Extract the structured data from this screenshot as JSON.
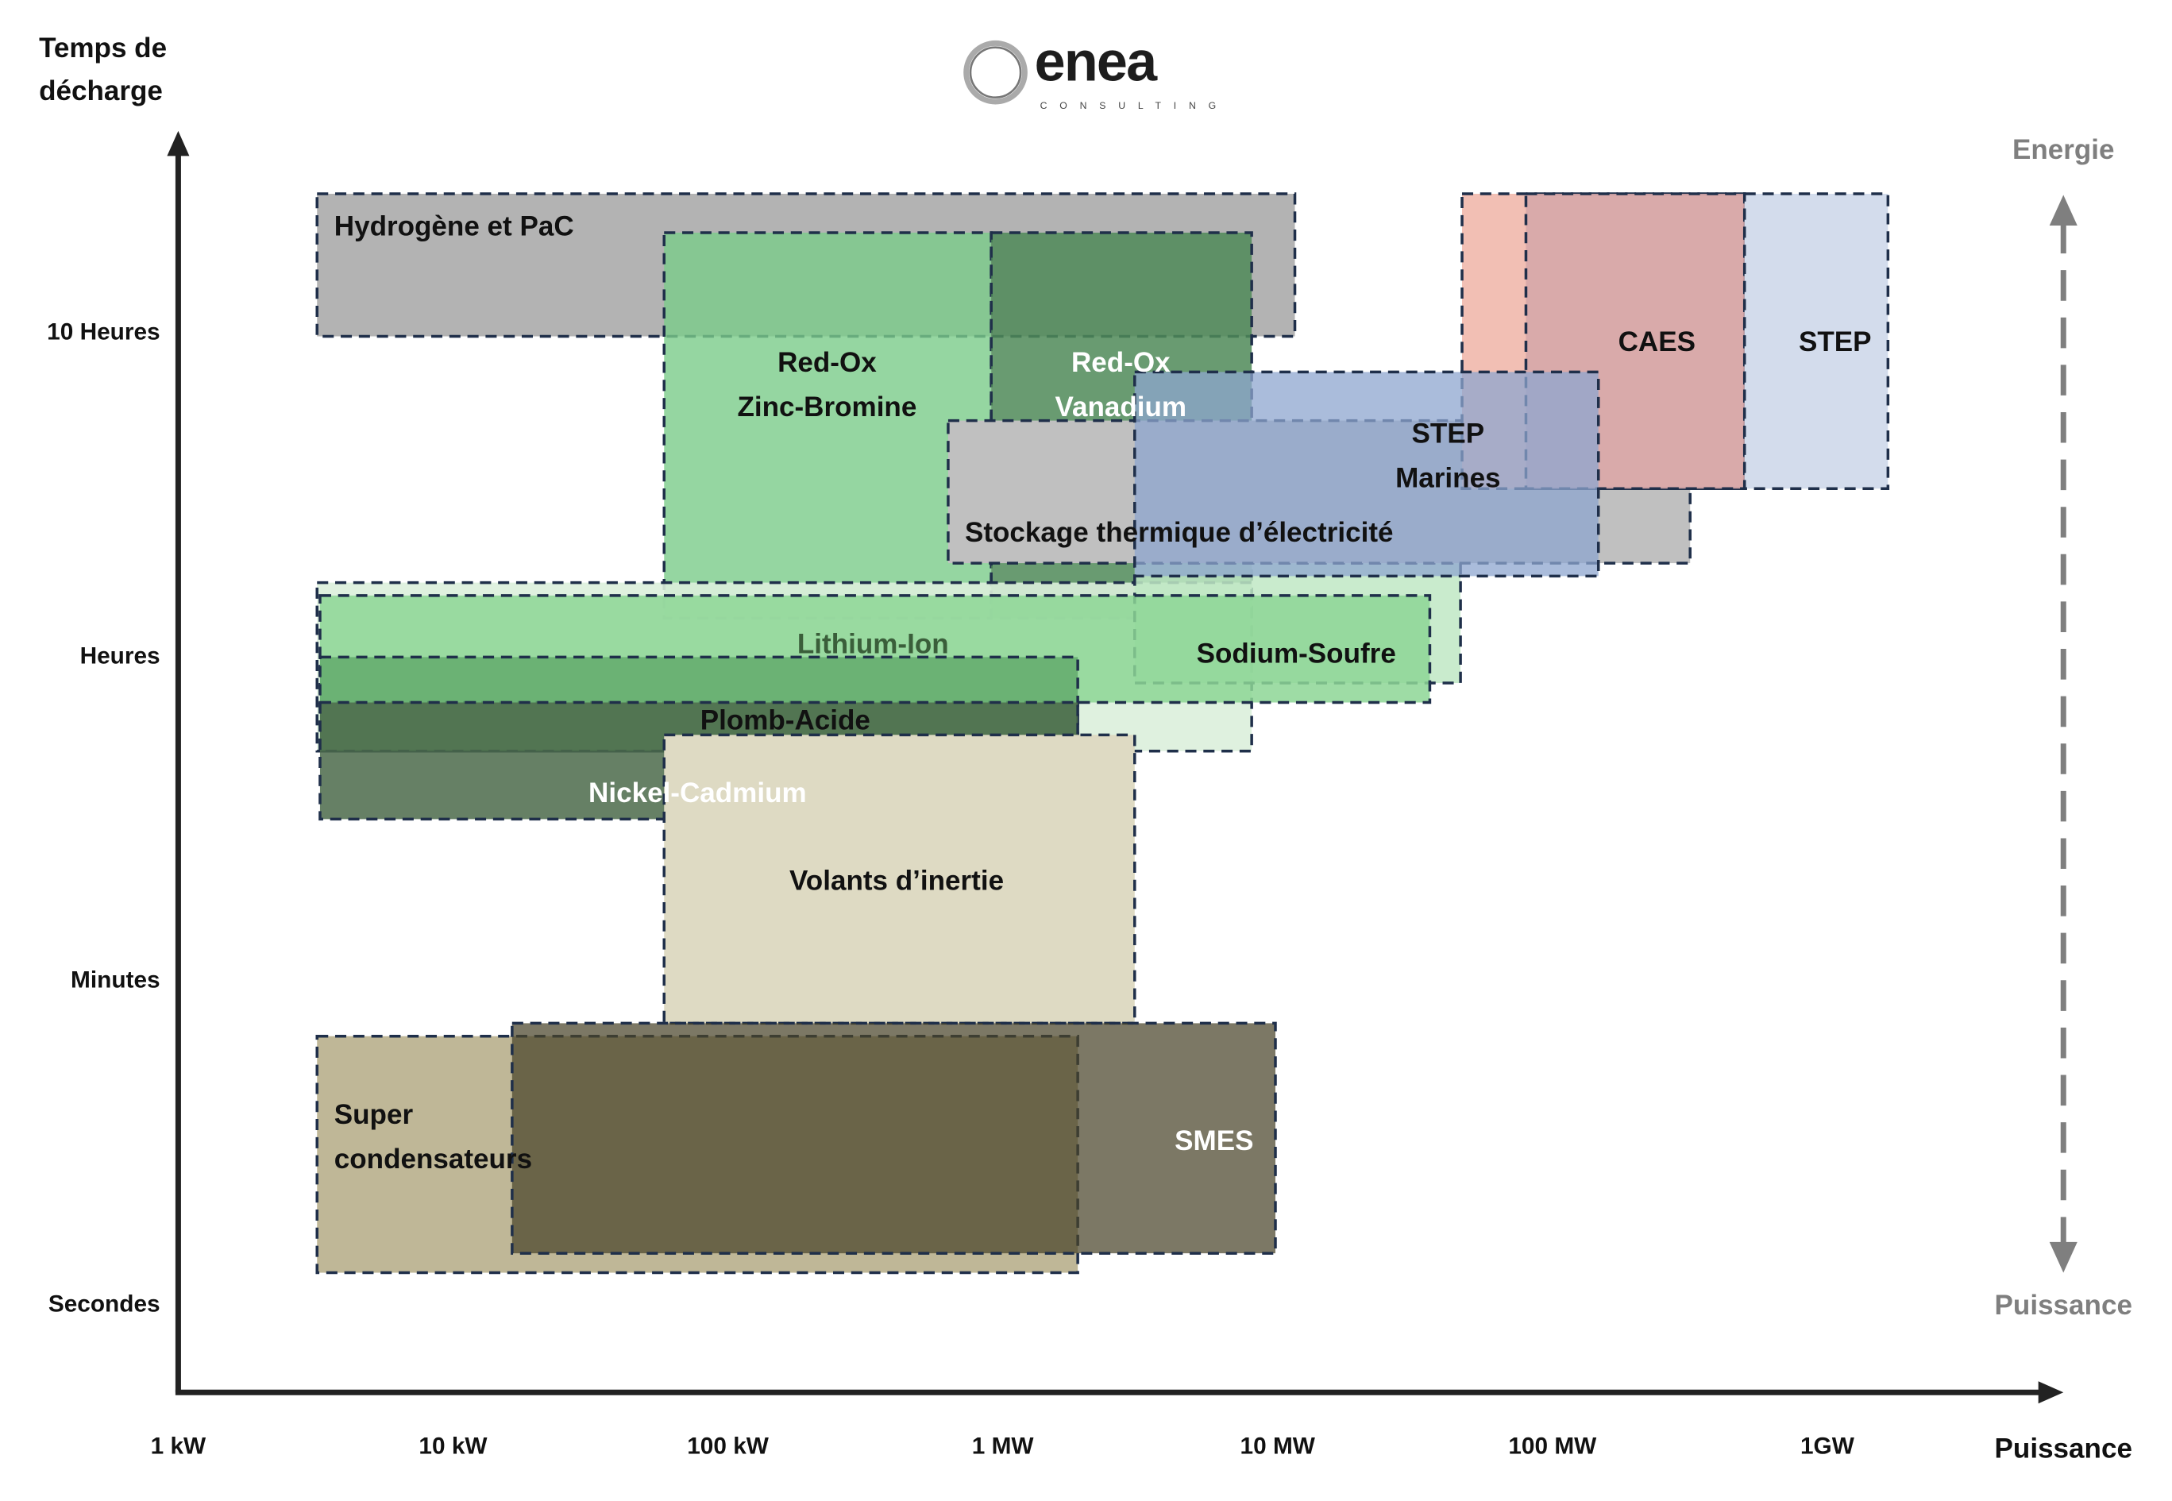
{
  "logo": {
    "name": "enea",
    "tagline": "CONSULTING"
  },
  "chart_data": {
    "type": "range-map",
    "ylabel_lines": [
      "Temps de",
      "décharge"
    ],
    "xlabel": "Puissance",
    "x_scale": "log",
    "x_unit": "kW",
    "x_ticks": [
      {
        "value": 1,
        "label": "1 kW"
      },
      {
        "value": 10,
        "label": "10 kW"
      },
      {
        "value": 100,
        "label": "100 kW"
      },
      {
        "value": 1000,
        "label": "1 MW"
      },
      {
        "value": 10000,
        "label": "10 MW"
      },
      {
        "value": 100000,
        "label": "100 MW"
      },
      {
        "value": 1000000,
        "label": "1GW"
      }
    ],
    "y_ticks": [
      {
        "value": 0,
        "label": "Secondes"
      },
      {
        "value": 1,
        "label": "Minutes"
      },
      {
        "value": 2,
        "label": "Heures"
      },
      {
        "value": 3,
        "label": "10 Heures"
      }
    ],
    "side_axis": {
      "top": "Energie",
      "bottom": "Puissance"
    },
    "technologies": [
      {
        "label_lines": [
          "Hydrogène et PaC"
        ],
        "x": [
          3.2,
          11560
        ],
        "y": [
          2.98,
          3.42
        ],
        "color": "#b3b3b3"
      },
      {
        "label_lines": [
          "Red-Ox",
          "Zinc-Bromine"
        ],
        "x": [
          58.6,
          908
        ],
        "y": [
          2.11,
          3.3
        ],
        "color": "#7acc8a"
      },
      {
        "label_lines": [
          "Red-Ox",
          "Vanadium"
        ],
        "x": [
          908,
          8050
        ],
        "y": [
          2.11,
          3.3
        ],
        "color": "#4f8a58"
      },
      {
        "label_lines": [],
        "x": [
          3.2,
          8050
        ],
        "y": [
          1.7,
          2.22
        ],
        "color": "#dcefdc"
      },
      {
        "label_lines": [
          "Sodium-Soufre"
        ],
        "x": [
          3020,
          46300
        ],
        "y": [
          1.91,
          2.28
        ],
        "color": "#bfe7c4"
      },
      {
        "label_lines": [
          "Lithium-Ion"
        ],
        "x": [
          3.28,
          35800
        ],
        "y": [
          1.85,
          2.18
        ],
        "color": "#8dd695"
      },
      {
        "label_lines": [
          "Plomb-Acide"
        ],
        "x": [
          3.28,
          1875
        ],
        "y": [
          1.7,
          1.99
        ],
        "color": "#5fa869"
      },
      {
        "label_lines": [
          "Nickel-Cadmium"
        ],
        "x": [
          3.28,
          1875
        ],
        "y": [
          1.49,
          1.85
        ],
        "color": "#4b6a4a"
      },
      {
        "label_lines": [
          "Volants d’inertie"
        ],
        "x": [
          58.6,
          3020
        ],
        "y": [
          0.86,
          1.75
        ],
        "color": "#dedac3"
      },
      {
        "label_lines": [
          "Stockage thermique d’électricité"
        ],
        "x": [
          633,
          317000
        ],
        "y": [
          2.28,
          2.72
        ],
        "color": "#c0c0c0"
      },
      {
        "label_lines": [],
        "x": [
          46900,
          500000
        ],
        "y": [
          2.51,
          3.42
        ],
        "color": "#f2bfb4"
      },
      {
        "label_lines": [
          "CAES"
        ],
        "x": [
          80100,
          500000
        ],
        "y": [
          2.51,
          3.42
        ],
        "color": "#d6a7a8"
      },
      {
        "label_lines": [
          "STEP"
        ],
        "x": [
          500000,
          1663000
        ],
        "y": [
          2.51,
          3.42
        ],
        "color": "#d3dcec"
      },
      {
        "label_lines": [
          "STEP",
          "Marines"
        ],
        "x": [
          3020,
          147000
        ],
        "y": [
          2.24,
          2.87
        ],
        "color": "#8ea6cf"
      },
      {
        "label_lines": [
          "Super",
          "condensateurs"
        ],
        "x": [
          3.2,
          1875
        ],
        "y": [
          0.09,
          0.82
        ],
        "color": "#bfb797"
      },
      {
        "label_lines": [
          "SMES"
        ],
        "x": [
          16.4,
          9820
        ],
        "y": [
          0.15,
          0.86
        ],
        "color": "#4a4429"
      }
    ]
  }
}
